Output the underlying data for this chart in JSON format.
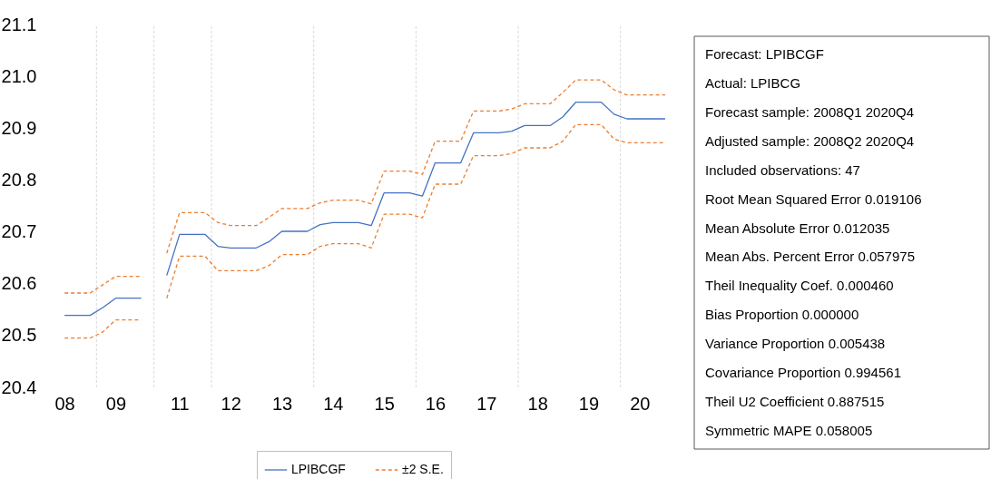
{
  "chart_data": {
    "type": "line",
    "categories": [
      null,
      "08",
      null,
      null,
      null,
      "09",
      null,
      null,
      null,
      null,
      "11",
      null,
      null,
      null,
      "12",
      null,
      null,
      null,
      "13",
      null,
      null,
      null,
      "14",
      null,
      null,
      null,
      "15",
      null,
      null,
      null,
      "16",
      null,
      null,
      null,
      "17",
      null,
      null,
      null,
      "18",
      null,
      null,
      null,
      "19",
      null,
      null,
      null,
      "20",
      null,
      null
    ],
    "series": [
      {
        "name": "LPIBCGF",
        "color": "#4472c4",
        "line_style": "solid",
        "values": [
          null,
          20.539,
          20.539,
          20.539,
          20.554,
          20.572,
          20.572,
          20.572,
          null,
          20.616,
          20.695,
          20.695,
          20.695,
          20.672,
          20.669,
          20.669,
          20.669,
          20.681,
          20.701,
          20.701,
          20.701,
          20.714,
          20.718,
          20.718,
          20.718,
          20.712,
          20.775,
          20.775,
          20.775,
          20.769,
          20.833,
          20.833,
          20.833,
          20.891,
          20.891,
          20.891,
          20.894,
          20.905,
          20.905,
          20.905,
          20.922,
          20.95,
          20.95,
          20.95,
          20.927,
          20.918,
          20.918,
          20.918,
          20.918
        ]
      },
      {
        "name": "±2 S.E.",
        "color": "#ed7d31",
        "line_style": "dashed",
        "values": [
          null,
          20.582,
          20.582,
          20.582,
          20.598,
          20.614,
          20.614,
          20.614,
          null,
          20.659,
          20.737,
          20.737,
          20.737,
          20.718,
          20.712,
          20.712,
          20.712,
          20.728,
          20.745,
          20.745,
          20.745,
          20.756,
          20.761,
          20.761,
          20.761,
          20.754,
          20.817,
          20.817,
          20.817,
          20.811,
          20.875,
          20.875,
          20.875,
          20.933,
          20.933,
          20.933,
          20.937,
          20.947,
          20.947,
          20.947,
          20.969,
          20.993,
          20.993,
          20.993,
          20.974,
          20.964,
          20.964,
          20.964,
          20.964
        ]
      },
      {
        "color": "#ed7d31",
        "line_style": "dashed",
        "values": [
          null,
          20.495,
          20.495,
          20.495,
          20.507,
          20.53,
          20.53,
          20.53,
          null,
          20.572,
          20.653,
          20.653,
          20.653,
          20.625,
          20.625,
          20.625,
          20.625,
          20.635,
          20.656,
          20.656,
          20.656,
          20.672,
          20.677,
          20.677,
          20.677,
          20.669,
          20.734,
          20.734,
          20.734,
          20.727,
          20.792,
          20.792,
          20.792,
          20.847,
          20.847,
          20.847,
          20.851,
          20.862,
          20.862,
          20.862,
          20.875,
          20.907,
          20.907,
          20.907,
          20.879,
          20.872,
          20.872,
          20.872,
          20.872
        ]
      }
    ],
    "ylim": [
      20.4,
      21.1
    ],
    "yticks": [
      20.4,
      20.5,
      20.6,
      20.7,
      20.8,
      20.9,
      {
        "value": 21.0,
        "label": "21.0"
      },
      21.1
    ],
    "grid": "x",
    "legend": "bottom",
    "marker": "none",
    "annotations": [
      "Forecast: LPIBCGF",
      "Actual: LPIBCG",
      "Forecast sample: 2008Q1 2020Q4",
      "Adjusted sample: 2008Q2 2020Q4",
      "Included observations: 47",
      "Root Mean Squared Error 0.019106",
      "Mean Absolute Error 0.012035",
      "Mean Abs. Percent Error 0.057975",
      "Theil Inequality Coef. 0.000460",
      "Bias Proportion 0.000000",
      "Variance Proportion 0.005438",
      "Covariance Proportion 0.994561",
      "Theil U2 Coefficient 0.887515",
      "Symmetric MAPE 0.058005"
    ]
  }
}
